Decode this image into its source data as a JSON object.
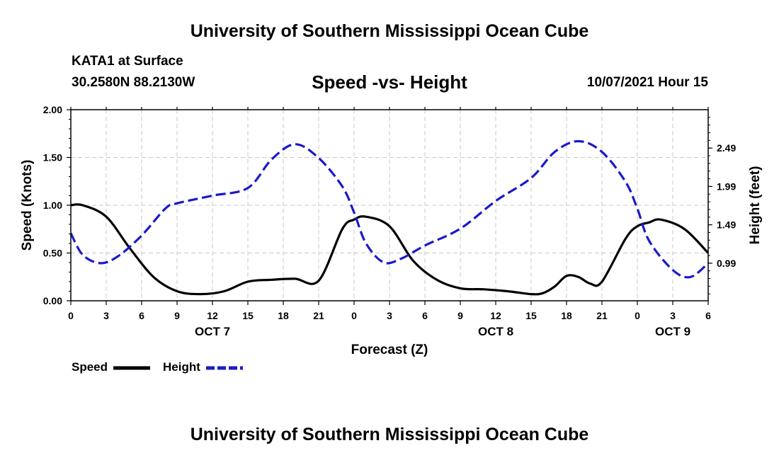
{
  "header": {
    "title_top": "University of Southern Mississippi Ocean Cube",
    "station": "KATA1 at Surface",
    "coords": "30.2580N  88.2130W",
    "chart_title": "Speed -vs- Height",
    "datetime": "10/07/2021 Hour 15"
  },
  "footer": {
    "title_bottom": "University of Southern Mississippi Ocean Cube"
  },
  "legend": {
    "speed_label": "Speed",
    "height_label": "Height"
  },
  "chart_data": {
    "type": "line",
    "title": "Speed -vs- Height",
    "xlabel": "Forecast (Z)",
    "ylabel_left": "Speed (Knots)",
    "ylabel_right": "Height (feet)",
    "xlim": [
      0,
      54
    ],
    "ylim_left": [
      0,
      2.0
    ],
    "ylim_right": [
      0.5,
      2.99
    ],
    "grid": true,
    "x_ticks": [
      0,
      3,
      6,
      9,
      12,
      15,
      18,
      21,
      24,
      27,
      30,
      33,
      36,
      39,
      42,
      45,
      48,
      51,
      54
    ],
    "x_tick_labels": [
      "0",
      "3",
      "6",
      "9",
      "12",
      "15",
      "18",
      "21",
      "0",
      "3",
      "6",
      "9",
      "12",
      "15",
      "18",
      "21",
      "0",
      "3",
      "6"
    ],
    "y_left_ticks": [
      0,
      0.5,
      1.0,
      1.5,
      2.0
    ],
    "y_left_tick_labels": [
      "0.00",
      "0.50",
      "1.00",
      "1.50",
      "2.00"
    ],
    "y_right_ticks": [
      0.99,
      1.49,
      1.99,
      2.49
    ],
    "y_right_tick_labels": [
      "0.99",
      "1.49",
      "1.99",
      "2.49"
    ],
    "day_labels": [
      {
        "x": 12,
        "label": "OCT 7"
      },
      {
        "x": 36,
        "label": "OCT 8"
      },
      {
        "x": 51,
        "label": "OCT 9"
      }
    ],
    "series": [
      {
        "name": "Speed",
        "axis": "left",
        "color": "#000000",
        "style": "solid",
        "x": [
          0,
          1,
          3,
          5,
          7,
          9,
          11,
          13,
          15,
          17,
          19,
          21,
          23,
          24,
          25,
          27,
          29,
          31,
          33,
          35,
          37,
          39,
          40,
          41,
          42,
          43,
          44,
          45,
          47,
          48,
          49,
          50,
          52,
          54
        ],
        "y": [
          1.0,
          1.0,
          0.88,
          0.55,
          0.25,
          0.1,
          0.07,
          0.1,
          0.2,
          0.22,
          0.23,
          0.21,
          0.75,
          0.85,
          0.88,
          0.78,
          0.42,
          0.22,
          0.13,
          0.12,
          0.1,
          0.07,
          0.08,
          0.15,
          0.26,
          0.25,
          0.18,
          0.2,
          0.65,
          0.78,
          0.82,
          0.85,
          0.75,
          0.5
        ]
      },
      {
        "name": "Height",
        "axis": "right",
        "color": "#1a1acc",
        "style": "dashed",
        "x": [
          0,
          1,
          2.5,
          4,
          6,
          8,
          9,
          12,
          15,
          17,
          19,
          21,
          23,
          24,
          25,
          26.5,
          28,
          30,
          33,
          36,
          39,
          41,
          43,
          45,
          47,
          48,
          49,
          51,
          52.5,
          54
        ],
        "y": [
          1.38,
          1.1,
          0.99,
          1.08,
          1.35,
          1.7,
          1.77,
          1.87,
          1.97,
          2.34,
          2.54,
          2.36,
          1.99,
          1.65,
          1.25,
          1.0,
          1.05,
          1.22,
          1.44,
          1.8,
          2.1,
          2.44,
          2.58,
          2.44,
          2.05,
          1.7,
          1.28,
          0.9,
          0.81,
          0.99
        ]
      }
    ]
  }
}
